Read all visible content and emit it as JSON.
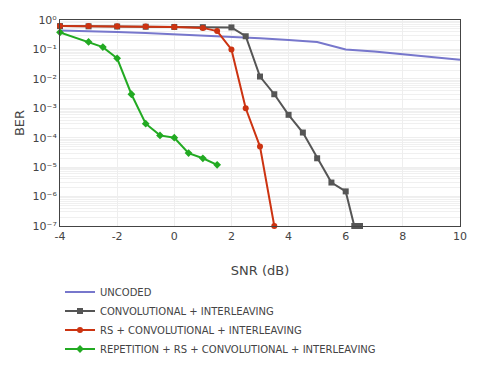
{
  "chart_data": {
    "type": "line",
    "xlabel": "SNR (dB)",
    "ylabel": "BER",
    "log": "y",
    "grid": true,
    "legend": "bottom",
    "xlim": [
      -4,
      10
    ],
    "xticks": [
      -4,
      -2,
      0,
      2,
      4,
      6,
      8,
      10
    ],
    "ylim": [
      1e-07,
      1
    ],
    "yticks": [
      {
        "value": 1e-07,
        "label": "10⁻⁷"
      },
      {
        "value": 1e-06,
        "label": "10⁻⁶"
      },
      {
        "value": 1e-05,
        "label": "10⁻⁵"
      },
      {
        "value": 0.0001,
        "label": "10⁻⁴"
      },
      {
        "value": 0.001,
        "label": "10⁻³"
      },
      {
        "value": 0.01,
        "label": "10⁻²"
      },
      {
        "value": 0.1,
        "label": "10⁻¹"
      },
      {
        "value": 1,
        "label": "10⁰"
      }
    ],
    "series": [
      {
        "name": "UNCODED",
        "color": "#7777cc",
        "marker": "none",
        "line_style": "solid",
        "x": [
          -4,
          -3,
          -2,
          -1,
          0,
          1,
          2,
          3,
          4,
          5,
          6,
          7,
          8,
          9,
          10
        ],
        "values": [
          0.44,
          0.42,
          0.39,
          0.36,
          0.33,
          0.3,
          0.27,
          0.24,
          0.21,
          0.18,
          0.1,
          0.085,
          0.068,
          0.055,
          0.045
        ]
      },
      {
        "name": "CONVOLUTIONAL + INTERLEAVING",
        "color": "#555555",
        "marker": "square",
        "line_style": "solid",
        "x": [
          -4,
          -3,
          -2,
          -1,
          0,
          1,
          2,
          2.5,
          3,
          3.5,
          4,
          4.5,
          5,
          5.5,
          6,
          6.3,
          6.5
        ],
        "values": [
          0.62,
          0.61,
          0.6,
          0.59,
          0.58,
          0.57,
          0.56,
          0.28,
          0.012,
          0.003,
          0.0006,
          0.00015,
          2e-05,
          3e-06,
          1.5e-06,
          1e-07,
          1e-07
        ]
      },
      {
        "name": "RS + CONVOLUTIONAL + INTERLEAVING",
        "color": "#cc3311",
        "marker": "circle",
        "line_style": "solid",
        "x": [
          -4,
          -3,
          -2,
          -1,
          0,
          1,
          1.5,
          2.0,
          2.5,
          3.0,
          3.5
        ],
        "values": [
          0.63,
          0.62,
          0.61,
          0.6,
          0.58,
          0.54,
          0.42,
          0.1,
          0.001,
          5e-05,
          1e-07
        ]
      },
      {
        "name": "REPETITION + RS + CONVOLUTIONAL + INTERLEAVING",
        "color": "#22aa22",
        "marker": "diamond",
        "line_style": "solid",
        "x": [
          -4.0,
          -3.0,
          -2.5,
          -2.0,
          -1.5,
          -1.0,
          -0.5,
          0.0,
          0.5,
          1.0,
          1.5
        ],
        "values": [
          0.38,
          0.18,
          0.12,
          0.05,
          0.003,
          0.0003,
          0.00012,
          0.0001,
          3e-05,
          2e-05,
          1.2e-05
        ]
      }
    ]
  }
}
